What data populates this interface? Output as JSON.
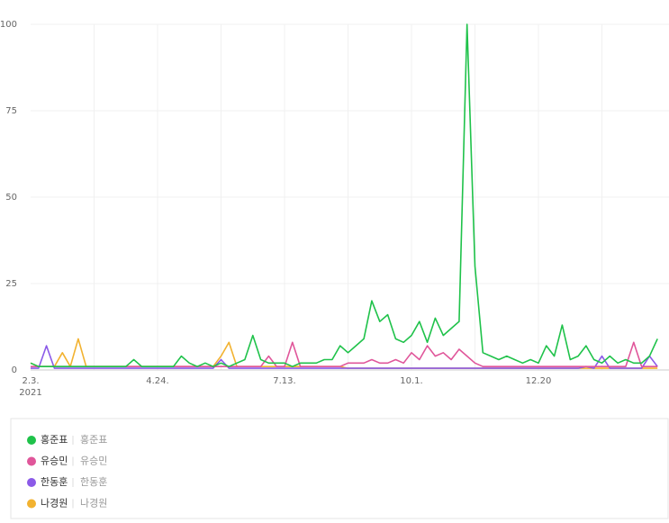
{
  "chart_data": {
    "type": "line",
    "categories": [
      "2.3.",
      null,
      null,
      null,
      null,
      null,
      null,
      null,
      null,
      null,
      null,
      null,
      null,
      null,
      null,
      null,
      "4.24.",
      null,
      null,
      null,
      null,
      null,
      null,
      null,
      null,
      null,
      null,
      null,
      null,
      null,
      null,
      null,
      "7.13.",
      null,
      null,
      null,
      null,
      null,
      null,
      null,
      null,
      null,
      null,
      null,
      null,
      null,
      null,
      null,
      "10.1.",
      null,
      null,
      null,
      null,
      null,
      null,
      null,
      null,
      null,
      null,
      null,
      null,
      null,
      null,
      null,
      "12.20",
      null,
      null,
      null,
      null,
      null,
      null,
      null,
      null,
      null,
      null,
      null,
      null,
      null,
      null,
      null
    ],
    "x_sublabel": "2021",
    "ylim": [
      0,
      100
    ],
    "yticks": [
      0,
      25,
      50,
      75,
      100
    ],
    "grid": true,
    "series": [
      {
        "name": "홍준표",
        "keyword": "홍준표",
        "color": "#1fc24a",
        "values": [
          2,
          1,
          1,
          1,
          1,
          1,
          1,
          1,
          1,
          1,
          1,
          1,
          1,
          3,
          1,
          1,
          1,
          1,
          1,
          4,
          2,
          1,
          2,
          1,
          2,
          1,
          2,
          3,
          10,
          3,
          2,
          2,
          2,
          1,
          2,
          2,
          2,
          3,
          3,
          7,
          5,
          7,
          9,
          20,
          14,
          16,
          9,
          8,
          10,
          14,
          8,
          15,
          10,
          12,
          14,
          100,
          30,
          5,
          4,
          3,
          4,
          3,
          2,
          3,
          2,
          7,
          4,
          13,
          3,
          4,
          7,
          3,
          2,
          4,
          2,
          3,
          2,
          2,
          4,
          9
        ]
      },
      {
        "name": "유승민",
        "keyword": "유승민",
        "color": "#e0569a",
        "values": [
          1,
          1,
          1,
          1,
          1,
          1,
          1,
          1,
          1,
          1,
          1,
          1,
          1,
          1,
          1,
          1,
          1,
          1,
          1,
          1,
          1,
          1,
          1,
          1,
          1,
          1,
          1,
          1,
          1,
          1,
          4,
          1,
          1,
          8,
          1,
          1,
          1,
          1,
          1,
          1,
          2,
          2,
          2,
          3,
          2,
          2,
          3,
          2,
          5,
          3,
          7,
          4,
          5,
          3,
          6,
          4,
          2,
          1,
          1,
          1,
          1,
          1,
          1,
          1,
          1,
          1,
          1,
          1,
          1,
          1,
          1,
          1,
          1,
          1,
          1,
          1,
          8,
          1,
          1,
          1
        ]
      },
      {
        "name": "한동훈",
        "keyword": "한동훈",
        "color": "#8b5ae8",
        "values": [
          0.5,
          0.5,
          7,
          0.5,
          0.5,
          0.5,
          0.5,
          0.5,
          0.5,
          0.5,
          0.5,
          0.5,
          0.5,
          0.5,
          0.5,
          0.5,
          0.5,
          0.5,
          0.5,
          0.5,
          0.5,
          0.5,
          0.5,
          0.5,
          3,
          0.5,
          0.5,
          0.5,
          0.5,
          0.5,
          0.5,
          0.5,
          0.5,
          0.5,
          0.5,
          0.5,
          0.5,
          0.5,
          0.5,
          0.5,
          0.5,
          0.5,
          0.5,
          0.5,
          0.5,
          0.5,
          0.5,
          0.5,
          0.5,
          0.5,
          0.5,
          0.5,
          0.5,
          0.5,
          0.5,
          0.5,
          0.5,
          0.5,
          0.5,
          0.5,
          0.5,
          0.5,
          0.5,
          0.5,
          0.5,
          0.5,
          0.5,
          0.5,
          0.5,
          0.5,
          1,
          0.5,
          4,
          0.5,
          0.5,
          0.5,
          0.5,
          0.5,
          4,
          1
        ]
      },
      {
        "name": "나경원",
        "keyword": "나경원",
        "color": "#f2b230",
        "values": [
          2,
          1,
          1,
          1,
          5,
          1,
          9,
          1,
          1,
          1,
          1,
          1,
          1,
          1,
          1,
          1,
          1,
          1,
          1,
          1,
          1,
          1,
          1,
          1,
          4,
          8,
          1,
          1,
          1,
          1,
          1,
          1,
          1,
          1,
          1,
          1,
          1,
          1,
          1,
          1,
          0.5,
          0.5,
          0.5,
          0.5,
          0.5,
          0.5,
          0.5,
          0.5,
          0.5,
          0.5,
          0.5,
          0.5,
          0.5,
          0.5,
          0.5,
          0.5,
          0.5,
          0.5,
          0.5,
          0.5,
          0.5,
          0.5,
          0.5,
          0.5,
          0.5,
          0.5,
          0.5,
          0.5,
          0.5,
          0.5,
          0.5,
          0.5,
          0.5,
          0.5,
          0.5,
          0.5,
          0.5,
          0.5,
          0.5,
          0.5
        ]
      }
    ]
  }
}
